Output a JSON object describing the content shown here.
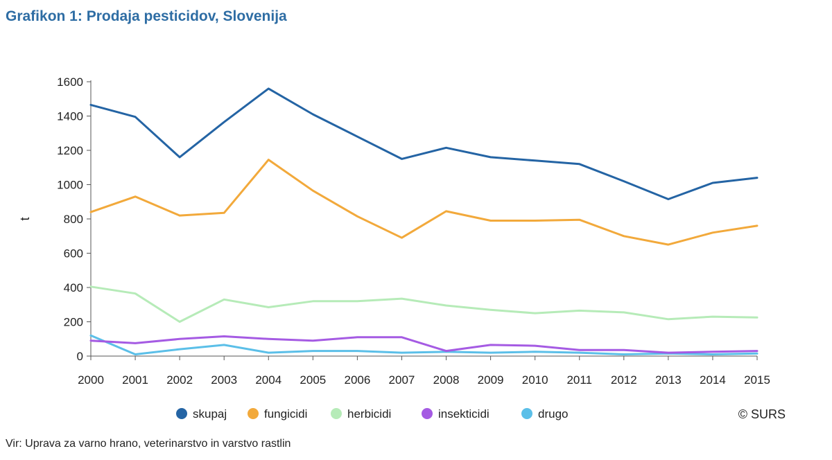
{
  "title": "Grafikon 1: Prodaja pesticidov, Slovenija",
  "source": "Vir: Uprava za varno hrano, veterinarstvo in varstvo rastlin",
  "copyright": "© SURS",
  "chart_data": {
    "type": "line",
    "title": "Grafikon 1: Prodaja pesticidov, Slovenija",
    "xlabel": "",
    "ylabel": "t",
    "ylim": [
      0,
      1600
    ],
    "yticks": [
      0,
      200,
      400,
      600,
      800,
      1000,
      1200,
      1400,
      1600
    ],
    "grid": false,
    "legend_position": "bottom",
    "x": [
      "2000",
      "2001",
      "2002",
      "2003",
      "2004",
      "2005",
      "2006",
      "2007",
      "2008",
      "2009",
      "2010",
      "2011",
      "2012",
      "2013",
      "2014",
      "2015"
    ],
    "series": [
      {
        "name": "skupaj",
        "color": "#2464a4",
        "values": [
          1465,
          1395,
          1160,
          1365,
          1560,
          1410,
          1280,
          1150,
          1215,
          1160,
          1140,
          1120,
          1020,
          915,
          1010,
          1040
        ]
      },
      {
        "name": "fungicidi",
        "color": "#f2a93b",
        "values": [
          840,
          930,
          820,
          835,
          1145,
          965,
          815,
          690,
          845,
          790,
          790,
          795,
          700,
          650,
          720,
          760
        ]
      },
      {
        "name": "herbicidi",
        "color": "#b6ebb8",
        "values": [
          405,
          365,
          200,
          330,
          285,
          320,
          320,
          335,
          295,
          270,
          250,
          265,
          255,
          215,
          230,
          225
        ]
      },
      {
        "name": "insekticidi",
        "color": "#a55be3",
        "values": [
          90,
          75,
          100,
          115,
          100,
          90,
          110,
          110,
          30,
          65,
          60,
          35,
          35,
          20,
          25,
          30
        ]
      },
      {
        "name": "drugo",
        "color": "#5bbfe8",
        "values": [
          120,
          10,
          40,
          65,
          20,
          30,
          30,
          20,
          25,
          20,
          25,
          20,
          10,
          15,
          10,
          15
        ]
      }
    ]
  }
}
